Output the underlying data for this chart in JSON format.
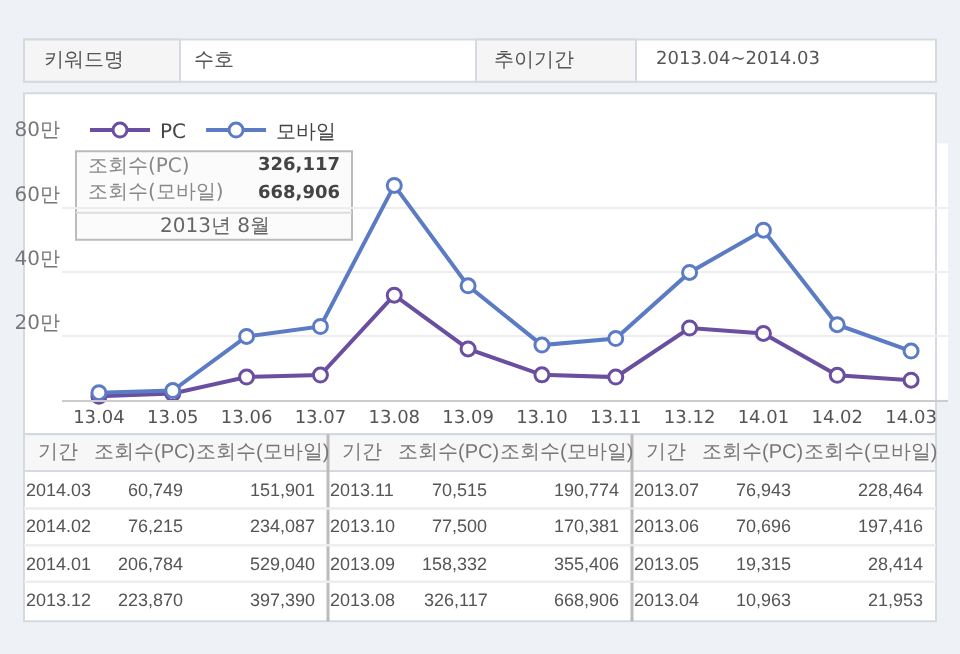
{
  "chart_data": {
    "type": "line",
    "categories": [
      "13.04",
      "13.05",
      "13.06",
      "13.07",
      "13.08",
      "13.09",
      "13.10",
      "13.11",
      "13.12",
      "14.01",
      "14.02",
      "14.03"
    ],
    "series": [
      {
        "name": "PC",
        "color": "#6a4fa0",
        "values": [
          1.0963,
          1.9315,
          7.0696,
          7.6943,
          32.6117,
          15.8332,
          7.75,
          7.0515,
          22.387,
          20.6784,
          7.6215,
          6.0749
        ]
      },
      {
        "name": "모바일",
        "color": "#5b7cc4",
        "values": [
          2.1953,
          2.8414,
          19.7416,
          22.8464,
          66.8906,
          35.5406,
          17.0381,
          19.0774,
          39.739,
          52.904,
          23.4087,
          15.1901
        ]
      }
    ],
    "ylim": [
      0,
      80
    ],
    "yticks": [
      {
        "value": 20,
        "label": "20만"
      },
      {
        "value": 40,
        "label": "40만"
      },
      {
        "value": 60,
        "label": "60만"
      },
      {
        "value": 80,
        "label": "80만"
      }
    ],
    "grid": "y",
    "legend": "top left",
    "marker": "circle",
    "line_style": "solid",
    "annotations": [
      "키워드명",
      "수호",
      "추이기간",
      "2013.04~2014.03",
      "조회수(PC)",
      "326,117",
      "조회수(모바일)",
      "668,906",
      "2013년 8월",
      "기간",
      "조회수(PC)",
      "조회수(모바일)",
      "2013.04",
      "2013.05",
      "2013.06",
      "2013.07",
      "2013.08",
      "2013.09",
      "2013.10",
      "2013.11",
      "2013.12",
      "2014.01",
      "2014.02",
      "2014.03",
      "10,963",
      "19,315",
      "70,696",
      "76,943",
      "326,117",
      "158,332",
      "77,500",
      "70,515",
      "223,870",
      "206,784",
      "76,215",
      "60,749",
      "21,953",
      "28,414",
      "197,416",
      "228,464",
      "668,906",
      "355,406",
      "170,381",
      "190,774",
      "397,390",
      "529,040",
      "234,087",
      "151,901"
    ]
  }
}
